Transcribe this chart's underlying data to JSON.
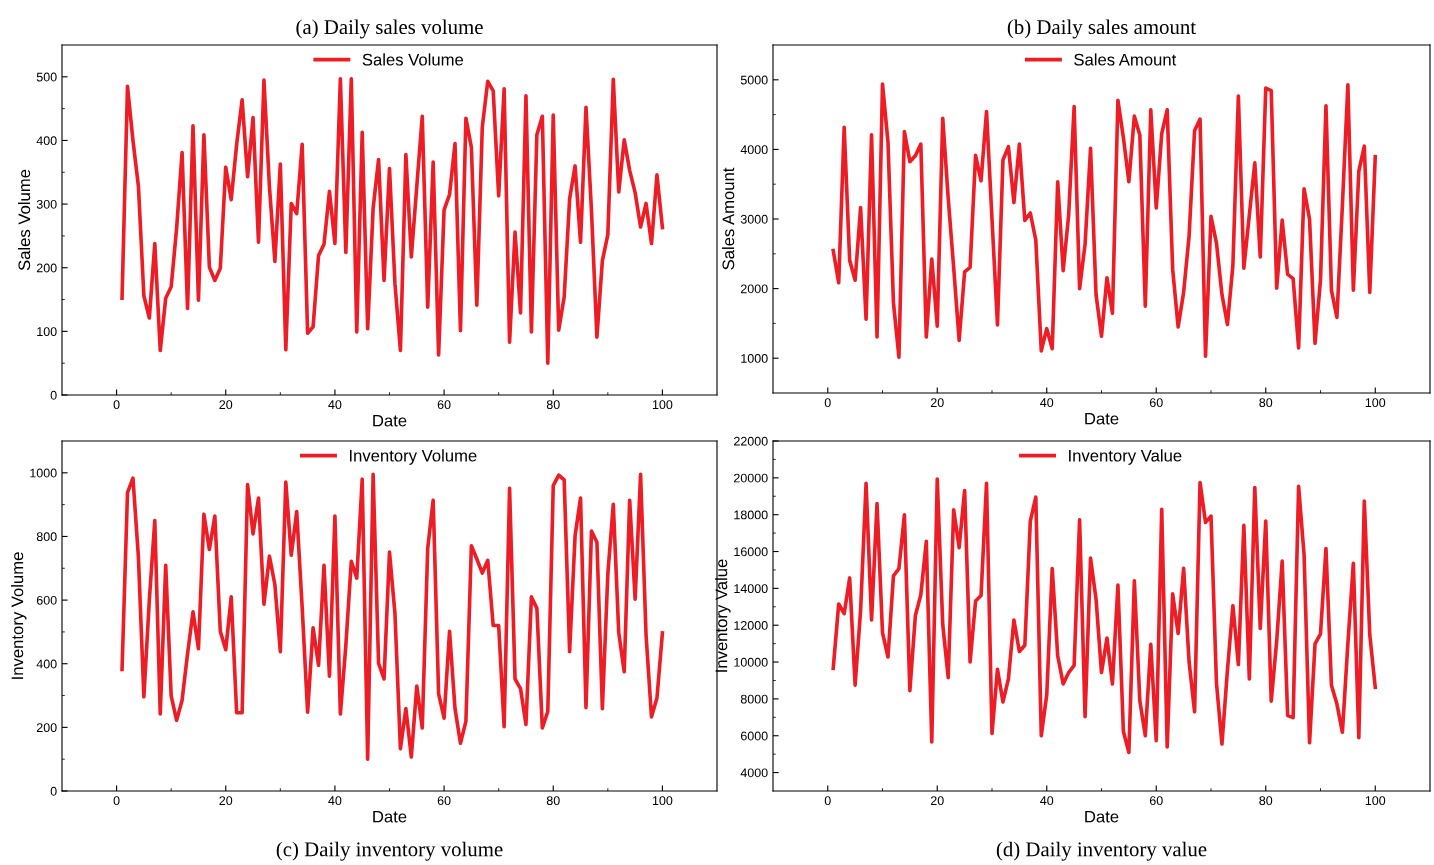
{
  "chart_data": [
    {
      "type": "line",
      "title": "(a) Daily sales volume",
      "xlabel": "Date",
      "ylabel": "Sales Volume",
      "legend": "top",
      "grid": false,
      "xlim": [
        -10,
        110
      ],
      "xticks": [
        0,
        {
          "value": 10,
          "label": null
        },
        20,
        {
          "value": 30,
          "label": null
        },
        40,
        {
          "value": 50,
          "label": null
        },
        60,
        {
          "value": 70,
          "label": null
        },
        80,
        {
          "value": 90,
          "label": null
        },
        100
      ],
      "ylim": [
        0,
        550
      ],
      "yticks": [
        0,
        {
          "value": 50,
          "label": null
        },
        100,
        {
          "value": 150,
          "label": null
        },
        200,
        {
          "value": 250,
          "label": null
        },
        300,
        {
          "value": 350,
          "label": null
        },
        400,
        {
          "value": 450,
          "label": null
        },
        500
      ],
      "x": [
        1,
        2,
        3,
        4,
        5,
        6,
        7,
        8,
        9,
        10,
        11,
        12,
        13,
        14,
        15,
        16,
        17,
        18,
        19,
        20,
        21,
        22,
        23,
        24,
        25,
        26,
        27,
        28,
        29,
        30,
        31,
        32,
        33,
        34,
        35,
        36,
        37,
        38,
        39,
        40,
        41,
        42,
        43,
        44,
        45,
        46,
        47,
        48,
        49,
        50,
        51,
        52,
        53,
        54,
        55,
        56,
        57,
        58,
        59,
        60,
        61,
        62,
        63,
        64,
        65,
        66,
        67,
        68,
        69,
        70,
        71,
        72,
        73,
        74,
        75,
        76,
        77,
        78,
        79,
        80,
        81,
        82,
        83,
        84,
        85,
        86,
        87,
        88,
        89,
        90,
        91,
        92,
        93,
        94,
        95,
        96,
        97,
        98,
        99,
        100
      ],
      "series": [
        {
          "name": "Sales Volume",
          "color": "#ee1c25",
          "values": [
            152,
            485,
            400,
            328,
            156,
            121,
            238,
            70,
            152,
            170,
            262,
            381,
            136,
            423,
            149,
            409,
            201,
            180,
            199,
            358,
            307,
            394,
            464,
            343,
            436,
            240,
            495,
            328,
            210,
            363,
            71,
            301,
            285,
            394,
            97,
            107,
            219,
            237,
            320,
            238,
            497,
            224,
            497,
            99,
            413,
            104,
            293,
            370,
            180,
            356,
            175,
            70,
            378,
            217,
            328,
            438,
            138,
            366,
            63,
            291,
            315,
            395,
            101,
            435,
            389,
            141,
            421,
            493,
            478,
            313,
            481,
            83,
            256,
            129,
            470,
            99,
            409,
            438,
            50,
            440,
            102,
            154,
            308,
            360,
            240,
            452,
            290,
            91,
            211,
            252,
            496,
            319,
            401,
            353,
            318,
            264,
            301,
            238,
            346,
            263
          ]
        }
      ]
    },
    {
      "type": "line",
      "title": "(b) Daily sales amount",
      "xlabel": "Date",
      "ylabel": "Sales Amount",
      "legend": "top",
      "grid": false,
      "xlim": [
        -10,
        110
      ],
      "xticks": [
        0,
        {
          "value": 10,
          "label": null
        },
        20,
        {
          "value": 30,
          "label": null
        },
        40,
        {
          "value": 50,
          "label": null
        },
        60,
        {
          "value": 70,
          "label": null
        },
        80,
        {
          "value": 90,
          "label": null
        },
        100
      ],
      "ylim": [
        500,
        5500
      ],
      "yticks": [
        1000,
        {
          "value": 1500,
          "label": null
        },
        2000,
        {
          "value": 2500,
          "label": null
        },
        3000,
        {
          "value": 3500,
          "label": null
        },
        4000,
        {
          "value": 4500,
          "label": null
        },
        5000
      ],
      "x": [
        1,
        2,
        3,
        4,
        5,
        6,
        7,
        8,
        9,
        10,
        11,
        12,
        13,
        14,
        15,
        16,
        17,
        18,
        19,
        20,
        21,
        22,
        23,
        24,
        25,
        26,
        27,
        28,
        29,
        30,
        31,
        32,
        33,
        34,
        35,
        36,
        37,
        38,
        39,
        40,
        41,
        42,
        43,
        44,
        45,
        46,
        47,
        48,
        49,
        50,
        51,
        52,
        53,
        54,
        55,
        56,
        57,
        58,
        59,
        60,
        61,
        62,
        63,
        64,
        65,
        66,
        67,
        68,
        69,
        70,
        71,
        72,
        73,
        74,
        75,
        76,
        77,
        78,
        79,
        80,
        81,
        82,
        83,
        84,
        85,
        86,
        87,
        88,
        89,
        90,
        91,
        92,
        93,
        94,
        95,
        96,
        97,
        98,
        99,
        100
      ],
      "series": [
        {
          "name": "Sales Amount",
          "color": "#ee1c25",
          "values": [
            2546,
            2084,
            4316,
            2408,
            2120,
            3164,
            1562,
            4208,
            1304,
            4940,
            4106,
            1796,
            1016,
            4256,
            3824,
            3908,
            4076,
            1304,
            2426,
            1460,
            4448,
            3300,
            2300,
            1256,
            2240,
            2306,
            3914,
            3548,
            4544,
            3000,
            1478,
            3848,
            4040,
            3236,
            4076,
            2978,
            3086,
            2696,
            1106,
            1424,
            1136,
            3536,
            2258,
            3056,
            4616,
            2000,
            2636,
            4016,
            1916,
            1316,
            2156,
            1646,
            4706,
            4166,
            3536,
            4478,
            4208,
            1748,
            4568,
            3158,
            4226,
            4568,
            2276,
            1448,
            1946,
            2756,
            4268,
            4436,
            1028,
            3038,
            2654,
            1916,
            1484,
            2336,
            4766,
            2294,
            3056,
            3806,
            2456,
            4880,
            4844,
            2006,
            2984,
            2204,
            2144,
            1148,
            3434,
            2996,
            1214,
            2126,
            4628,
            1976,
            1586,
            3200,
            4928,
            1976,
            3686,
            4046,
            1946,
            3896
          ]
        }
      ]
    },
    {
      "type": "line",
      "title": "(c) Daily inventory volume",
      "xlabel": "Date",
      "ylabel": "Inventory Volume",
      "legend": "top",
      "grid": false,
      "xlim": [
        -10,
        110
      ],
      "xticks": [
        0,
        {
          "value": 10,
          "label": null
        },
        20,
        {
          "value": 30,
          "label": null
        },
        40,
        {
          "value": 50,
          "label": null
        },
        60,
        {
          "value": 70,
          "label": null
        },
        80,
        {
          "value": 90,
          "label": null
        },
        100
      ],
      "ylim": [
        0,
        1100
      ],
      "yticks": [
        0,
        {
          "value": 100,
          "label": null
        },
        200,
        {
          "value": 300,
          "label": null
        },
        400,
        {
          "value": 500,
          "label": null
        },
        600,
        {
          "value": 700,
          "label": null
        },
        800,
        {
          "value": 900,
          "label": null
        },
        1000
      ],
      "x": [
        1,
        2,
        3,
        4,
        5,
        6,
        7,
        8,
        9,
        10,
        11,
        12,
        13,
        14,
        15,
        16,
        17,
        18,
        19,
        20,
        21,
        22,
        23,
        24,
        25,
        26,
        27,
        28,
        29,
        30,
        31,
        32,
        33,
        34,
        35,
        36,
        37,
        38,
        39,
        40,
        41,
        42,
        43,
        44,
        45,
        46,
        47,
        48,
        49,
        50,
        51,
        52,
        53,
        54,
        55,
        56,
        57,
        58,
        59,
        60,
        61,
        62,
        63,
        64,
        65,
        66,
        67,
        68,
        69,
        70,
        71,
        72,
        73,
        74,
        75,
        76,
        77,
        78,
        79,
        80,
        81,
        82,
        83,
        84,
        85,
        86,
        87,
        88,
        89,
        90,
        91,
        92,
        93,
        94,
        95,
        96,
        97,
        98,
        99,
        100
      ],
      "series": [
        {
          "name": "Inventory Volume",
          "color": "#ee1c25",
          "values": [
            382,
            938,
            983,
            735,
            296,
            600,
            850,
            242,
            709,
            299,
            222,
            285,
            431,
            563,
            447,
            870,
            759,
            864,
            502,
            444,
            610,
            246,
            246,
            963,
            808,
            921,
            587,
            738,
            649,
            438,
            971,
            741,
            878,
            577,
            248,
            513,
            395,
            709,
            361,
            864,
            242,
            457,
            722,
            669,
            980,
            100,
            995,
            401,
            352,
            751,
            557,
            133,
            259,
            107,
            330,
            198,
            762,
            914,
            305,
            229,
            502,
            259,
            150,
            219,
            771,
            729,
            685,
            725,
            520,
            520,
            202,
            951,
            352,
            322,
            209,
            610,
            574,
            198,
            250,
            960,
            993,
            978,
            438,
            802,
            921,
            262,
            817,
            782,
            259,
            682,
            901,
            497,
            375,
            914,
            603,
            995,
            491,
            233,
            292,
            497
          ]
        }
      ]
    },
    {
      "type": "line",
      "title": "(d) Daily inventory value",
      "xlabel": "Date",
      "ylabel": "Inventory Value",
      "legend": "top",
      "grid": false,
      "xlim": [
        -10,
        110
      ],
      "xticks": [
        0,
        {
          "value": 10,
          "label": null
        },
        20,
        {
          "value": 30,
          "label": null
        },
        40,
        {
          "value": 50,
          "label": null
        },
        60,
        {
          "value": 70,
          "label": null
        },
        80,
        {
          "value": 90,
          "label": null
        },
        100
      ],
      "ylim": [
        3000,
        22000
      ],
      "yticks": [
        4000,
        {
          "value": 5000,
          "label": null
        },
        6000,
        {
          "value": 7000,
          "label": null
        },
        8000,
        {
          "value": 9000,
          "label": null
        },
        10000,
        {
          "value": 11000,
          "label": null
        },
        12000,
        {
          "value": 13000,
          "label": null
        },
        14000,
        {
          "value": 15000,
          "label": null
        },
        16000,
        {
          "value": 17000,
          "label": null
        },
        18000,
        {
          "value": 19000,
          "label": null
        },
        20000,
        {
          "value": 21000,
          "label": null
        },
        22000
      ],
      "x": [
        1,
        2,
        3,
        4,
        5,
        6,
        7,
        8,
        9,
        10,
        11,
        12,
        13,
        14,
        15,
        16,
        17,
        18,
        19,
        20,
        21,
        22,
        23,
        24,
        25,
        26,
        27,
        28,
        29,
        30,
        31,
        32,
        33,
        34,
        35,
        36,
        37,
        38,
        39,
        40,
        41,
        42,
        43,
        44,
        45,
        46,
        47,
        48,
        49,
        50,
        51,
        52,
        53,
        54,
        55,
        56,
        57,
        58,
        59,
        60,
        61,
        62,
        63,
        64,
        65,
        66,
        67,
        68,
        69,
        70,
        71,
        72,
        73,
        74,
        75,
        76,
        77,
        78,
        79,
        80,
        81,
        82,
        83,
        84,
        85,
        86,
        87,
        88,
        89,
        90,
        91,
        92,
        93,
        94,
        95,
        96,
        97,
        98,
        99,
        100
      ],
      "series": [
        {
          "name": "Inventory Value",
          "color": "#ee1c25",
          "values": [
            9658,
            13151,
            12626,
            14567,
            8745,
            12800,
            19703,
            12283,
            18607,
            11599,
            10274,
            14681,
            15069,
            17991,
            8448,
            12512,
            13653,
            16553,
            5663,
            19932,
            12055,
            9155,
            18265,
            16210,
            19315,
            10000,
            13311,
            13608,
            19703,
            6119,
            9612,
            7831,
            9087,
            12283,
            10571,
            10913,
            17648,
            18950,
            6005,
            8220,
            15069,
            10343,
            8813,
            9429,
            9818,
            17717,
            7032,
            15640,
            13425,
            9429,
            11302,
            8813,
            14178,
            6233,
            5092,
            14407,
            7900,
            6005,
            10959,
            5731,
            18288,
            5389,
            13699,
            11553,
            15092,
            10000,
            7306,
            19749,
            17580,
            17922,
            8859,
            5549,
            9544,
            13060,
            9863,
            17420,
            9087,
            19475,
            11827,
            17648,
            7877,
            11142,
            15480,
            7101,
            6987,
            19543,
            15822,
            5617,
            10982,
            11530,
            16165,
            8745,
            7717,
            6187,
            11000,
            15366,
            5891,
            18744,
            11484,
            8631
          ]
        }
      ]
    }
  ]
}
